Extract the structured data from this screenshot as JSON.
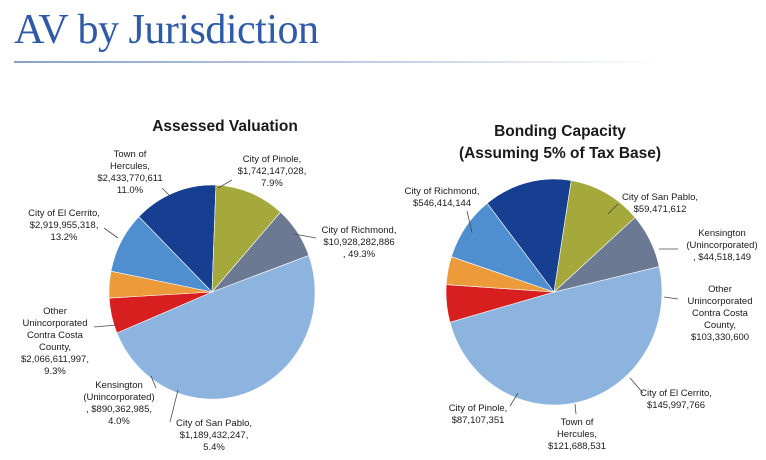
{
  "slide": {
    "title": "AV by Jurisdiction"
  },
  "chart_data": [
    {
      "type": "pie",
      "title": "Assessed Valuation",
      "slices": [
        {
          "name": "City of Richmond",
          "value": 10928282886,
          "value_label": "$10,928,282,886",
          "percent_label": "49.3%",
          "color": "#8db4df"
        },
        {
          "name": "City of San Pablo",
          "value": 1189432247,
          "value_label": "$1,189,432,247",
          "percent_label": "5.4%",
          "color": "#d81f1f"
        },
        {
          "name": "Kensington (Unincorporated)",
          "value": 890362985,
          "value_label": "$890,362,985",
          "percent_label": "4.0%",
          "color": "#ec9a3a"
        },
        {
          "name": "Other Unincorporated Contra Costa County",
          "value": 2066611997,
          "value_label": "$2,066,611,997",
          "percent_label": "9.3%",
          "color": "#4f8fcf"
        },
        {
          "name": "City of El Cerrito",
          "value": 2919955318,
          "value_label": "$2,919,955,318",
          "percent_label": "13.2%",
          "color": "#163e91"
        },
        {
          "name": "Town of Hercules",
          "value": 2433770611,
          "value_label": "$2,433,770,611",
          "percent_label": "11.0%",
          "color": "#a5a83a"
        },
        {
          "name": "City of Pinole",
          "value": 1742147028,
          "value_label": "$1,742,147,028",
          "percent_label": "7.9%",
          "color": "#6b7a92"
        }
      ]
    },
    {
      "type": "pie",
      "title": "Bonding Capacity",
      "subtitle": "(Assuming 5% of Tax Base)",
      "slices": [
        {
          "name": "City of Richmond",
          "value": 546414144,
          "value_label": "$546,414,144",
          "color": "#8db4df"
        },
        {
          "name": "City of San Pablo",
          "value": 59471612,
          "value_label": "$59,471,612",
          "color": "#d81f1f"
        },
        {
          "name": "Kensington (Unincorporated)",
          "value": 44518149,
          "value_label": "$44,518,149",
          "color": "#ec9a3a"
        },
        {
          "name": "Other Unincorporated Contra Costa County",
          "value": 103330600,
          "value_label": "$103,330,600",
          "color": "#4f8fcf"
        },
        {
          "name": "City of El Cerrito",
          "value": 145997766,
          "value_label": "$145,997,766",
          "color": "#163e91"
        },
        {
          "name": "Town of Hercules",
          "value": 121688531,
          "value_label": "$121,688,531",
          "color": "#a5a83a"
        },
        {
          "name": "City of Pinole",
          "value": 87107351,
          "value_label": "$87,107,351",
          "color": "#6b7a92"
        }
      ]
    }
  ]
}
